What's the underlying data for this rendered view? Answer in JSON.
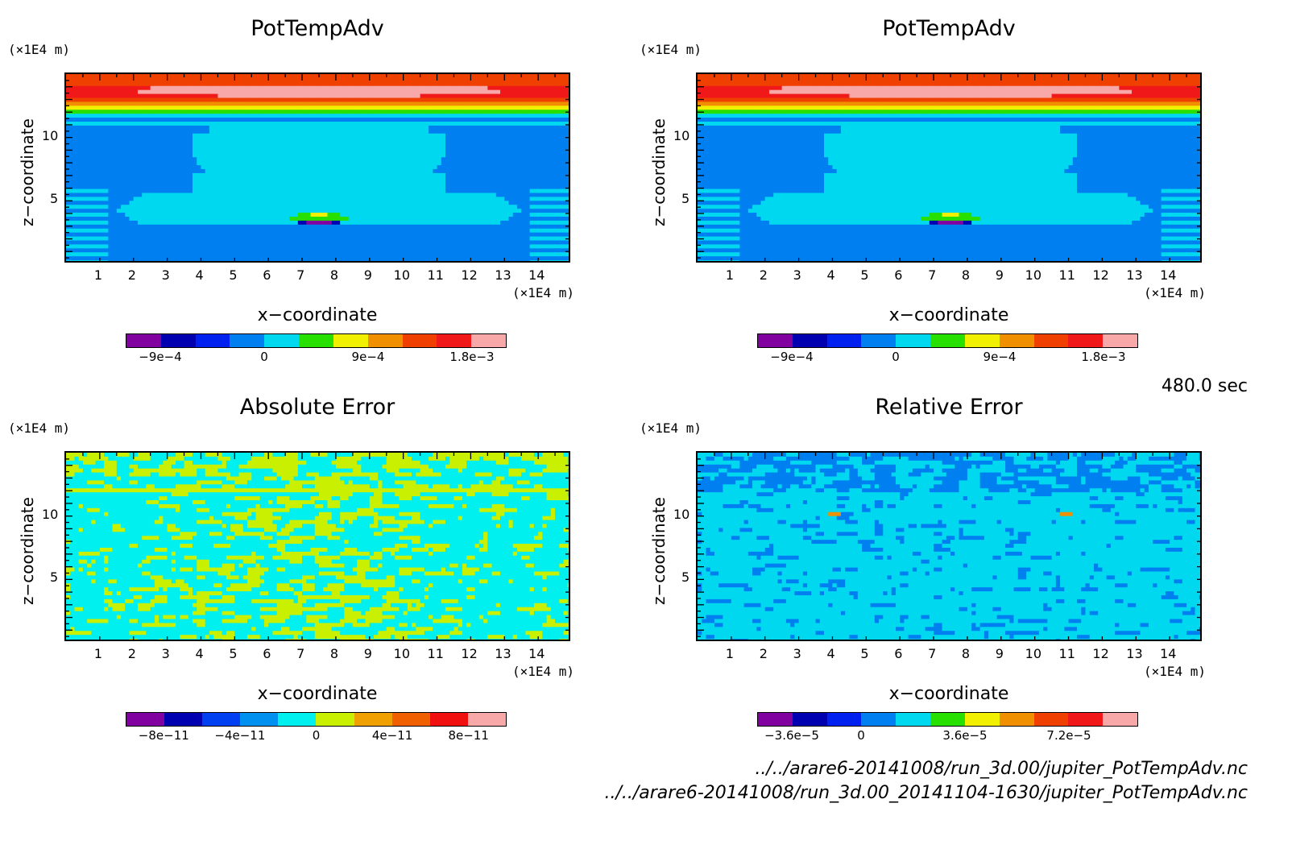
{
  "time_label": "480.0 sec",
  "footer_lines": [
    "../../arare6-20141008/run_3d.00/jupiter_PotTempAdv.nc",
    "../../arare6-20141008/run_3d.00_20141104-1630/jupiter_PotTempAdv.nc"
  ],
  "colors": {
    "pottemp": [
      "#8000a0",
      "#0000b0",
      "#0020f0",
      "#0080f0",
      "#00d8f0",
      "#28e000",
      "#f0f000",
      "#f09000",
      "#f04000",
      "#f01818",
      "#f8a8a8"
    ],
    "abserr": [
      "#8000a0",
      "#0000b0",
      "#0040f0",
      "#0090f0",
      "#00f0f0",
      "#c8f000",
      "#f0a000",
      "#f06000",
      "#f01010",
      "#f8a8a8"
    ],
    "relerr": [
      "#8000a0",
      "#0000b0",
      "#0020f0",
      "#0080f0",
      "#00d8f0",
      "#28e000",
      "#f0f000",
      "#f09000",
      "#f04000",
      "#f01818",
      "#f8a8a8"
    ]
  },
  "chart_data": [
    {
      "type": "heatmap",
      "title": "PotTempAdv",
      "xlabel": "x−coordinate",
      "ylabel": "z−coordinate",
      "xunit": "(×1E4 m)",
      "yunit": "(×1E4 m)",
      "xlim": [
        0,
        15
      ],
      "ylim": [
        0,
        15
      ],
      "xticks": [
        "1",
        "2",
        "3",
        "4",
        "5",
        "6",
        "7",
        "8",
        "9",
        "10",
        "11",
        "12",
        "13",
        "14"
      ],
      "yticks": [
        "5",
        "10"
      ],
      "colorbar_labels": [
        "−9e−4",
        "0",
        "9e−4",
        "1.8e−3"
      ],
      "colorbar_label_positions": [
        1,
        4,
        7,
        10
      ],
      "palette": "pottemp",
      "field": "pottemp"
    },
    {
      "type": "heatmap",
      "title": "PotTempAdv",
      "xlabel": "x−coordinate",
      "ylabel": "z−coordinate",
      "xunit": "(×1E4 m)",
      "yunit": "(×1E4 m)",
      "xlim": [
        0,
        15
      ],
      "ylim": [
        0,
        15
      ],
      "xticks": [
        "1",
        "2",
        "3",
        "4",
        "5",
        "6",
        "7",
        "8",
        "9",
        "10",
        "11",
        "12",
        "13",
        "14"
      ],
      "yticks": [
        "5",
        "10"
      ],
      "colorbar_labels": [
        "−9e−4",
        "0",
        "9e−4",
        "1.8e−3"
      ],
      "colorbar_label_positions": [
        1,
        4,
        7,
        10
      ],
      "palette": "pottemp",
      "field": "pottemp"
    },
    {
      "type": "heatmap",
      "title": "Absolute Error",
      "xlabel": "x−coordinate",
      "ylabel": "z−coordinate",
      "xunit": "(×1E4 m)",
      "yunit": "(×1E4 m)",
      "xlim": [
        0,
        15
      ],
      "ylim": [
        0,
        15
      ],
      "xticks": [
        "1",
        "2",
        "3",
        "4",
        "5",
        "6",
        "7",
        "8",
        "9",
        "10",
        "11",
        "12",
        "13",
        "14"
      ],
      "yticks": [
        "5",
        "10"
      ],
      "colorbar_labels": [
        "−8e−11",
        "−4e−11",
        "0",
        "4e−11",
        "8e−11"
      ],
      "colorbar_label_positions": [
        1,
        3,
        5,
        7,
        9
      ],
      "palette": "abserr",
      "field": "abserr"
    },
    {
      "type": "heatmap",
      "title": "Relative Error",
      "xlabel": "x−coordinate",
      "ylabel": "z−coordinate",
      "xunit": "(×1E4 m)",
      "yunit": "(×1E4 m)",
      "xlim": [
        0,
        15
      ],
      "ylim": [
        0,
        15
      ],
      "xticks": [
        "1",
        "2",
        "3",
        "4",
        "5",
        "6",
        "7",
        "8",
        "9",
        "10",
        "11",
        "12",
        "13",
        "14"
      ],
      "yticks": [
        "5",
        "10"
      ],
      "colorbar_labels": [
        "−3.6e−5",
        "0",
        "3.6e−5",
        "7.2e−5"
      ],
      "colorbar_label_positions": [
        1,
        3,
        6,
        9
      ],
      "palette": "relerr",
      "field": "relerr"
    }
  ]
}
